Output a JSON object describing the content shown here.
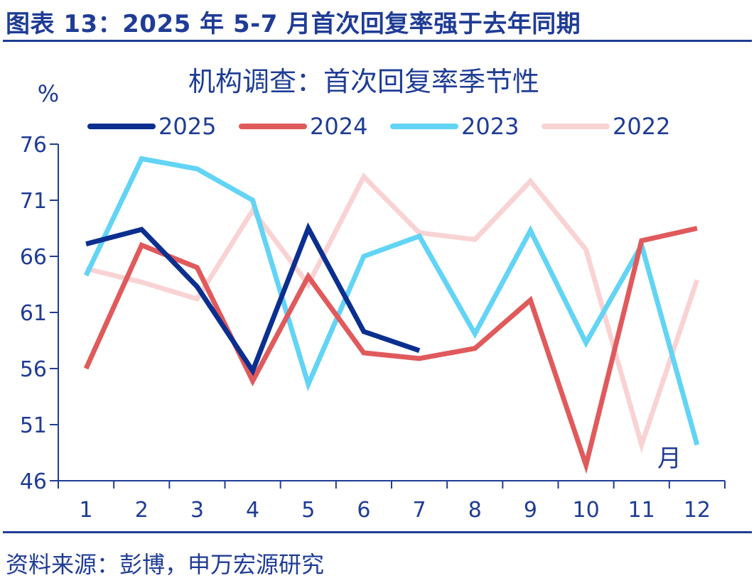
{
  "figure": {
    "title": "图表 13：2025 年 5-7 月首次回复率强于去年同期",
    "source": "资料来源：彭博，申万宏源研究"
  },
  "chart_data": {
    "type": "line",
    "title": "机构调查：首次回复率季节性",
    "ylabel": "%",
    "xlabel": "月",
    "ylim": [
      46,
      76
    ],
    "yticks": [
      46,
      51,
      56,
      61,
      66,
      71,
      76
    ],
    "categories": [
      "1",
      "2",
      "3",
      "4",
      "5",
      "6",
      "7",
      "8",
      "9",
      "10",
      "11",
      "12"
    ],
    "legend_position": "top",
    "grid": false,
    "series": [
      {
        "name": "2025",
        "color": "#0b2f8f",
        "values": [
          67.1,
          68.4,
          63.3,
          55.8,
          68.5,
          59.3,
          57.6,
          null,
          null,
          null,
          null,
          null
        ]
      },
      {
        "name": "2024",
        "color": "#e05a5c",
        "values": [
          56.0,
          67.0,
          65.0,
          54.9,
          64.2,
          57.4,
          56.9,
          57.8,
          62.1,
          47.4,
          67.4,
          68.5
        ]
      },
      {
        "name": "2023",
        "color": "#62d4f5",
        "values": [
          64.3,
          74.7,
          73.8,
          71.0,
          54.6,
          66.0,
          67.8,
          59.1,
          68.3,
          58.3,
          67.0,
          49.2
        ]
      },
      {
        "name": "2022",
        "color": "#f9d3d4",
        "values": [
          64.9,
          63.7,
          62.2,
          70.1,
          63.5,
          73.1,
          68.1,
          67.5,
          72.7,
          66.6,
          49.2,
          63.9
        ]
      }
    ]
  }
}
